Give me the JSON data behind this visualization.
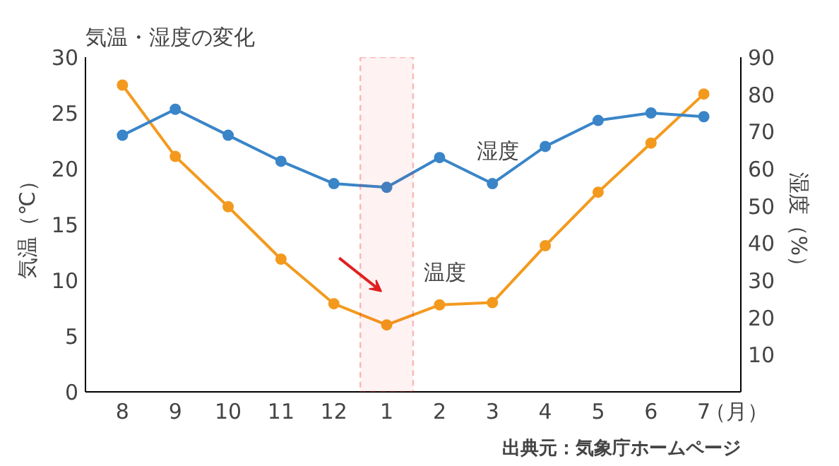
{
  "chart_data": {
    "type": "line",
    "title": "気温・湿度の変化",
    "ylabel": "気温（℃）",
    "y2label": "湿度（%）",
    "xlabel": "（月）",
    "categories": [
      "8",
      "9",
      "10",
      "11",
      "12",
      "1",
      "2",
      "3",
      "4",
      "5",
      "6",
      "7"
    ],
    "series": [
      {
        "name": "温度",
        "color": "#f39a1e",
        "values": [
          27.5,
          21.1,
          16.6,
          11.9,
          7.9,
          6.0,
          7.8,
          8.0,
          13.1,
          17.9,
          22.3,
          26.7
        ]
      },
      {
        "name": "湿度",
        "color": "#3a85c8",
        "axis": "y2",
        "values": [
          69,
          76,
          69,
          62,
          56,
          55,
          63,
          56,
          66,
          73,
          75,
          74
        ]
      }
    ],
    "ylim": [
      0,
      30
    ],
    "yticks": [
      0,
      5,
      10,
      15,
      20,
      25,
      30
    ],
    "y2lim": [
      0,
      90
    ],
    "y2ticks": [
      10,
      20,
      30,
      40,
      50,
      60,
      70,
      80,
      90
    ],
    "bands": [
      {
        "axis": "x",
        "from": "1",
        "to": "1",
        "color": "#ee2222"
      }
    ],
    "annotations": [
      "出典元：気象庁ホームページ"
    ],
    "marker": "circle",
    "grid": false,
    "legend": false
  }
}
